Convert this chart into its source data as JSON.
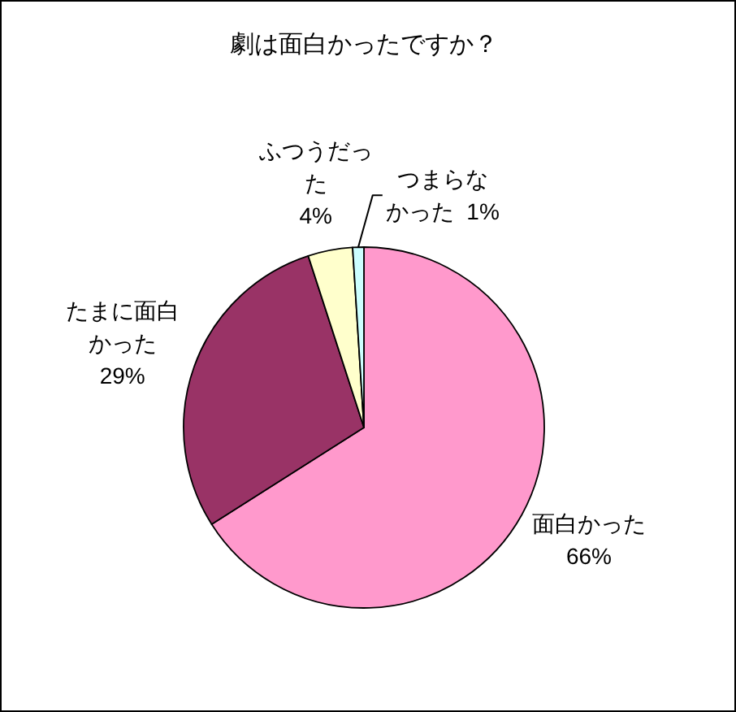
{
  "chart_data": {
    "type": "pie",
    "title": "劇は面白かったですか？",
    "categories": [
      "面白かった",
      "たまに面白かった",
      "ふつうだった",
      "つまらなかった"
    ],
    "values": [
      66,
      29,
      4,
      1
    ],
    "colors": [
      "#ff99cc",
      "#993366",
      "#ffffcc",
      "#ccffff"
    ],
    "value_labels": [
      "66%",
      "29%",
      "4%",
      "1%"
    ]
  }
}
